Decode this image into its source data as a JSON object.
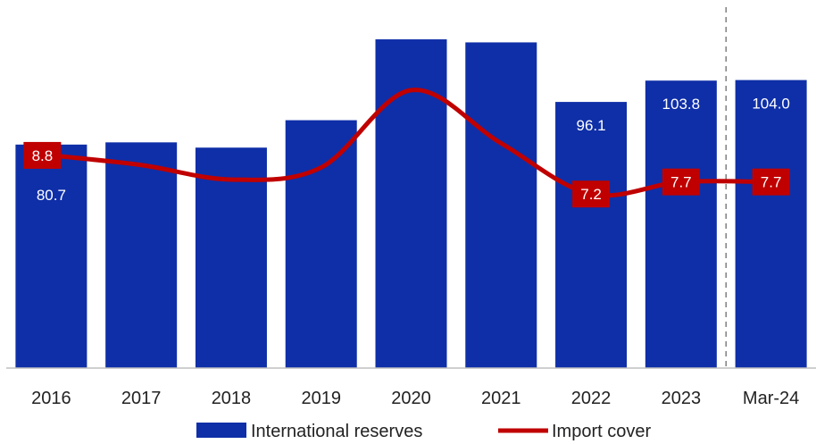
{
  "chart_data": {
    "type": "bar",
    "categories": [
      "2016",
      "2017",
      "2018",
      "2019",
      "2020",
      "2021",
      "2022",
      "2023",
      "Mar-24"
    ],
    "series": [
      {
        "name": "International reserves",
        "kind": "bar",
        "values": [
          80.7,
          81.5,
          79.6,
          89.5,
          118.7,
          117.6,
          96.1,
          103.8,
          104.0
        ],
        "labels": [
          "80.7",
          "",
          "",
          "",
          "",
          "",
          "96.1",
          "103.8",
          "104.0"
        ],
        "color": "#0F2FA8"
      },
      {
        "name": "Import cover",
        "kind": "line",
        "values": [
          8.8,
          8.4,
          7.8,
          8.3,
          11.5,
          9.3,
          7.2,
          7.7,
          7.7
        ],
        "labels": [
          "8.8",
          "",
          "",
          "",
          "",
          "",
          "7.2",
          "7.7",
          "7.7"
        ],
        "color": "#C00000"
      }
    ],
    "ylim": [
      0,
      120
    ],
    "y2lim": [
      0,
      13.75
    ],
    "grid": false,
    "legend_position": "bottom",
    "divider_before": "Mar-24"
  }
}
